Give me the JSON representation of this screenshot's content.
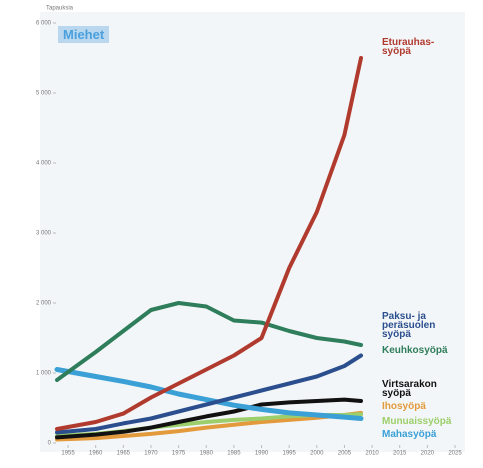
{
  "chart_data": {
    "type": "line",
    "panel": "Miehet",
    "y_label": "Tapauksia",
    "x": [
      1953,
      1960,
      1965,
      1970,
      1975,
      1980,
      1985,
      1990,
      1995,
      2000,
      2005,
      2008
    ],
    "xlim": [
      1953,
      2025
    ],
    "xticks": [
      1955,
      1960,
      1965,
      1970,
      1975,
      1980,
      1985,
      1990,
      1995,
      2000,
      2005,
      2010,
      2015,
      2020,
      2025
    ],
    "ylim": [
      0,
      6000
    ],
    "yticks": [
      0,
      {
        "value": 1000,
        "label": "1 000"
      },
      {
        "value": 2000,
        "label": "2 000"
      },
      {
        "value": 3000,
        "label": "3 000"
      },
      {
        "value": 4000,
        "label": "4 000"
      },
      {
        "value": 5000,
        "label": "5 000"
      },
      {
        "value": 6000,
        "label": "6 000"
      }
    ],
    "series": [
      {
        "name": "Eturauhas-\nsyöpä",
        "color": "#b03a2e",
        "values": [
          200,
          300,
          420,
          650,
          850,
          1050,
          1250,
          1500,
          2500,
          3300,
          4400,
          5500
        ]
      },
      {
        "name": "Paksu- ja\nperäsuolen\nsyöpä",
        "color": "#2b4f8e",
        "values": [
          150,
          200,
          280,
          350,
          450,
          550,
          650,
          750,
          850,
          950,
          1100,
          1250
        ]
      },
      {
        "name": "Keuhkosyöpä",
        "color": "#2e7d5b",
        "values": [
          900,
          1300,
          1600,
          1900,
          2000,
          1950,
          1750,
          1720,
          1600,
          1500,
          1450,
          1400
        ]
      },
      {
        "name": "Virtsarakon\nsyöpä",
        "color": "#111111",
        "values": [
          80,
          120,
          160,
          220,
          300,
          380,
          450,
          550,
          580,
          600,
          620,
          600
        ]
      },
      {
        "name": "Ihosyöpä",
        "color": "#e39a3c",
        "values": [
          50,
          70,
          100,
          130,
          170,
          220,
          260,
          300,
          330,
          360,
          400,
          430
        ]
      },
      {
        "name": "Munuaissyöpä",
        "color": "#9ccf6b",
        "values": [
          100,
          130,
          170,
          220,
          260,
          300,
          330,
          350,
          380,
          400,
          400,
          410
        ]
      },
      {
        "name": "Mahasyöpä",
        "color": "#3aa0d6",
        "values": [
          1050,
          950,
          880,
          800,
          700,
          620,
          540,
          480,
          430,
          400,
          370,
          350
        ]
      }
    ]
  }
}
